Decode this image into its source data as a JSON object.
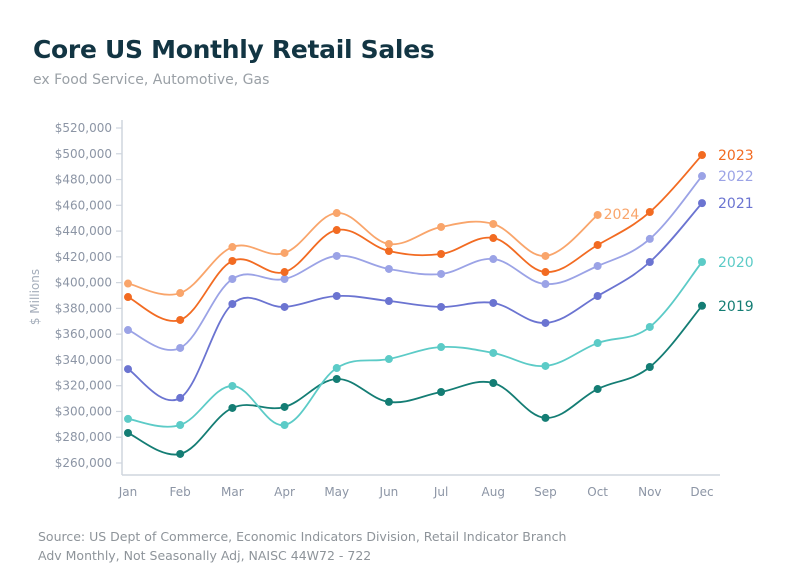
{
  "chart_data": {
    "type": "line",
    "title": "Core US Monthly Retail Sales",
    "subtitle": "ex Food Service, Automotive, Gas",
    "xlabel": "",
    "ylabel": "$ Millions",
    "ylim": [
      250000,
      520000
    ],
    "yticks": [
      260000,
      280000,
      300000,
      320000,
      340000,
      360000,
      380000,
      400000,
      420000,
      440000,
      460000,
      480000,
      500000,
      520000
    ],
    "ytick_labels": [
      "$260,000",
      "$280,000",
      "$300,000",
      "$320,000",
      "$340,000",
      "$360,000",
      "$380,000",
      "$400,000",
      "$420,000",
      "$440,000",
      "$460,000",
      "$480,000",
      "$500,000",
      "$520,000"
    ],
    "categories": [
      "Jan",
      "Feb",
      "Mar",
      "Apr",
      "May",
      "Jun",
      "Jul",
      "Aug",
      "Sep",
      "Oct",
      "Nov",
      "Dec"
    ],
    "grid": false,
    "legend": "inline-end-labels",
    "series": [
      {
        "name": "2019",
        "color": "#147d74",
        "values": [
          283300,
          267000,
          302700,
          303500,
          325200,
          307400,
          315100,
          322100,
          295000,
          317400,
          334500,
          382000
        ]
      },
      {
        "name": "2020",
        "color": "#5ccbc7",
        "values": [
          294200,
          289500,
          319800,
          289500,
          333700,
          340700,
          350000,
          345400,
          335300,
          353100,
          365600,
          416000
        ]
      },
      {
        "name": "2021",
        "color": "#6b74d1",
        "values": [
          332900,
          310500,
          383400,
          381100,
          389600,
          385700,
          381100,
          384200,
          368700,
          389600,
          416000,
          461700
        ]
      },
      {
        "name": "2022",
        "color": "#9ba3e6",
        "values": [
          363200,
          349300,
          402800,
          402800,
          420700,
          410600,
          406700,
          418300,
          398900,
          412900,
          433900,
          482700
        ]
      },
      {
        "name": "2023",
        "color": "#f26b22",
        "values": [
          388800,
          371000,
          416800,
          408200,
          440800,
          424500,
          422200,
          434600,
          408200,
          429200,
          454800,
          499000
        ]
      },
      {
        "name": "2024",
        "color": "#f9a56b",
        "values": [
          399300,
          391900,
          427600,
          423000,
          454000,
          430000,
          443200,
          445500,
          420700,
          452500,
          null,
          null
        ]
      }
    ]
  },
  "footer": {
    "source": "Source: US Dept of Commerce, Economic Indicators Division, Retail Indicator Branch",
    "note": "Adv Monthly, Not Seasonally Adj, NAISC 44W72 - 722"
  }
}
